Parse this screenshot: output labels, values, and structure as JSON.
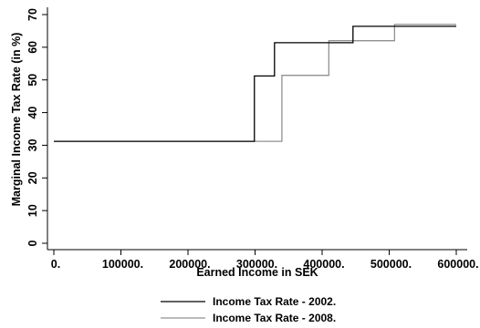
{
  "chart_data": {
    "type": "line",
    "title": "",
    "xlabel": "Earned Income in SEK",
    "ylabel": "Marginal Income Tax Rate (in %)",
    "xlim": [
      0,
      600000
    ],
    "ylim": [
      0,
      70
    ],
    "x_ticks": [
      0,
      100000,
      200000,
      300000,
      400000,
      500000,
      600000
    ],
    "x_tick_labels": [
      "0.",
      "100000.",
      "200000.",
      "300000.",
      "400000.",
      "500000.",
      "600000."
    ],
    "y_ticks": [
      0,
      10,
      20,
      30,
      40,
      50,
      60,
      70
    ],
    "y_tick_labels": [
      "0",
      "10",
      "20",
      "30",
      "40",
      "50",
      "60",
      "70"
    ],
    "grid": false,
    "legend_position": "bottom",
    "series": [
      {
        "name": "Income Tax Rate - 2002.",
        "color": "#000000",
        "x": [
          0,
          299000,
          299000,
          329000,
          329000,
          446000,
          446000,
          600000
        ],
        "y": [
          31.2,
          31.2,
          51.2,
          51.2,
          61.4,
          61.4,
          66.4,
          66.4
        ]
      },
      {
        "name": "Income Tax Rate - 2008.",
        "color": "#909090",
        "x": [
          0,
          340000,
          340000,
          410000,
          410000,
          508000,
          508000,
          600000
        ],
        "y": [
          31.2,
          31.2,
          51.4,
          51.4,
          62.0,
          62.0,
          67.0,
          67.0
        ]
      }
    ]
  }
}
